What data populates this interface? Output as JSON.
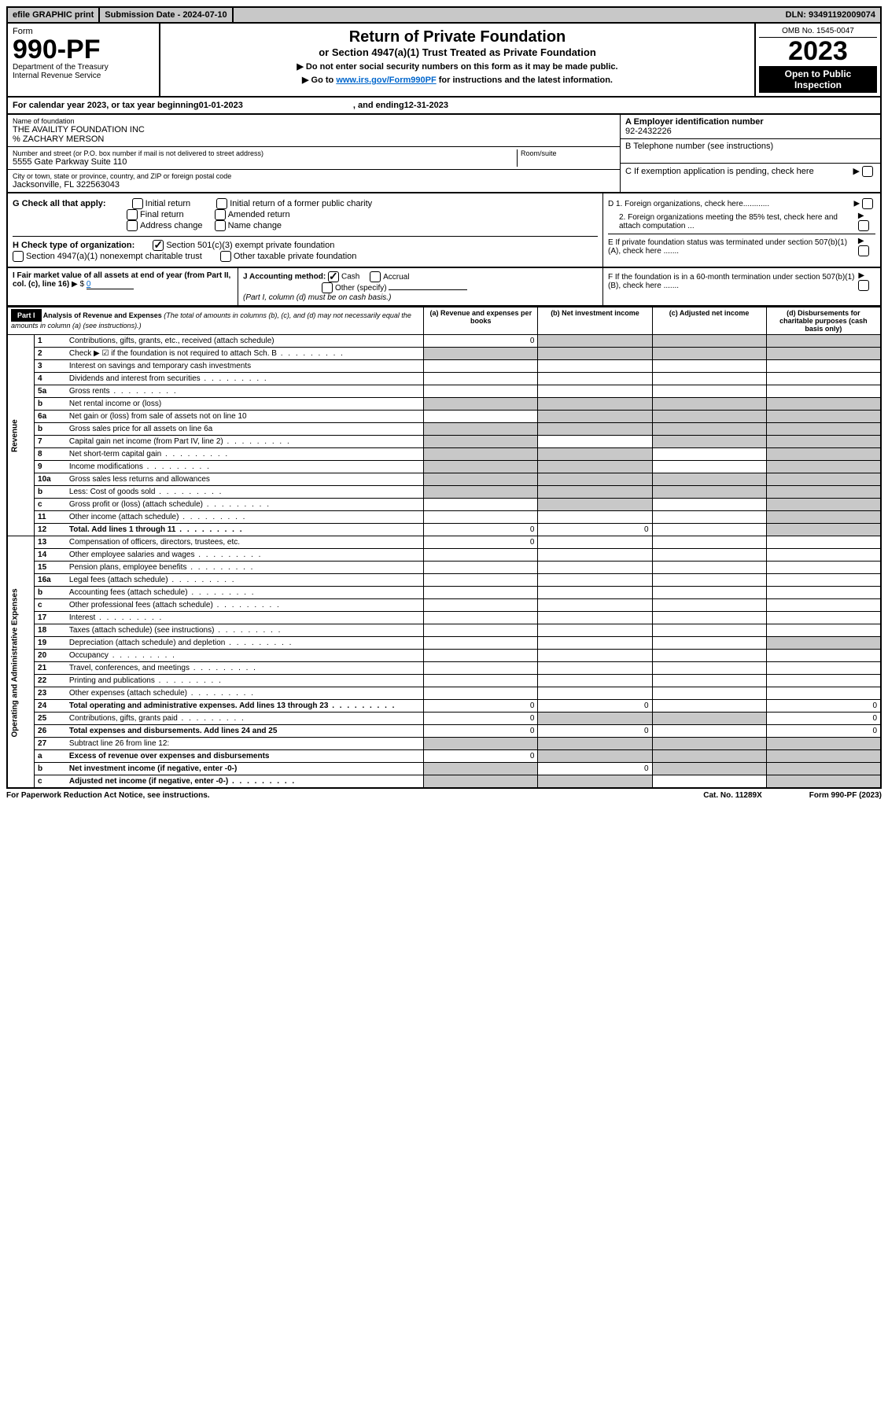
{
  "topBar": {
    "efile": "efile GRAPHIC print",
    "subDateLabel": "Submission Date - 2024-07-10",
    "dln": "DLN: 93491192009074"
  },
  "header": {
    "formLabel": "Form",
    "formNumber": "990-PF",
    "dept": "Department of the Treasury",
    "irs": "Internal Revenue Service",
    "title": "Return of Private Foundation",
    "subtitle": "or Section 4947(a)(1) Trust Treated as Private Foundation",
    "note1": "▶ Do not enter social security numbers on this form as it may be made public.",
    "note2Pre": "▶ Go to ",
    "note2Link": "www.irs.gov/Form990PF",
    "note2Post": " for instructions and the latest information.",
    "omb": "OMB No. 1545-0047",
    "year": "2023",
    "openBadge": "Open to Public Inspection"
  },
  "calYear": {
    "prefix": "For calendar year 2023, or tax year beginning ",
    "begin": "01-01-2023",
    "mid": ", and ending ",
    "end": "12-31-2023"
  },
  "entity": {
    "nameLabel": "Name of foundation",
    "name": "THE AVAILITY FOUNDATION INC",
    "careOf": "% ZACHARY MERSON",
    "addrLabel": "Number and street (or P.O. box number if mail is not delivered to street address)",
    "addr": "5555 Gate Parkway Suite 110",
    "roomLabel": "Room/suite",
    "cityLabel": "City or town, state or province, country, and ZIP or foreign postal code",
    "city": "Jacksonville, FL  322563043",
    "einLabel": "A Employer identification number",
    "ein": "92-2432226",
    "phoneLabel": "B Telephone number (see instructions)",
    "cLabel": "C If exemption application is pending, check here"
  },
  "checkG": {
    "label": "G Check all that apply:",
    "opts": [
      "Initial return",
      "Final return",
      "Address change",
      "Initial return of a former public charity",
      "Amended return",
      "Name change"
    ]
  },
  "checkH": {
    "label": "H Check type of organization:",
    "opt1": "Section 501(c)(3) exempt private foundation",
    "opt2": "Section 4947(a)(1) nonexempt charitable trust",
    "opt3": "Other taxable private foundation"
  },
  "rightD": {
    "d1": "D 1. Foreign organizations, check here............",
    "d2": "2. Foreign organizations meeting the 85% test, check here and attach computation ...",
    "e": "E  If private foundation status was terminated under section 507(b)(1)(A), check here .......",
    "f": "F  If the foundation is in a 60-month termination under section 507(b)(1)(B), check here ......."
  },
  "fmv": {
    "iLabel": "I Fair market value of all assets at end of year (from Part II, col. (c), line 16)",
    "iVal": "0",
    "jLabel": "J Accounting method:",
    "jCash": "Cash",
    "jAccrual": "Accrual",
    "jOther": "Other (specify)",
    "jNote": "(Part I, column (d) must be on cash basis.)"
  },
  "part1": {
    "label": "Part I",
    "title": "Analysis of Revenue and Expenses",
    "titleNote": "(The total of amounts in columns (b), (c), and (d) may not necessarily equal the amounts in column (a) (see instructions).)",
    "colA": "(a)   Revenue and expenses per books",
    "colB": "(b)   Net investment income",
    "colC": "(c)   Adjusted net income",
    "colD": "(d)   Disbursements for charitable purposes (cash basis only)"
  },
  "sideRevenue": "Revenue",
  "sideExpenses": "Operating and Administrative Expenses",
  "rows": [
    {
      "n": "1",
      "desc": "Contributions, gifts, grants, etc., received (attach schedule)",
      "a": "0",
      "shadeB": true,
      "shadeC": true,
      "shadeD": true
    },
    {
      "n": "2",
      "desc": "Check ▶ ☑ if the foundation is not required to attach Sch. B",
      "shadeA": true,
      "shadeB": true,
      "shadeC": true,
      "shadeD": true,
      "bold": false,
      "dots": true
    },
    {
      "n": "3",
      "desc": "Interest on savings and temporary cash investments"
    },
    {
      "n": "4",
      "desc": "Dividends and interest from securities",
      "dots": true
    },
    {
      "n": "5a",
      "desc": "Gross rents",
      "dots": true
    },
    {
      "n": "b",
      "desc": "Net rental income or (loss)",
      "shadeA": true,
      "shadeB": true,
      "shadeC": true,
      "shadeD": true,
      "inline": true
    },
    {
      "n": "6a",
      "desc": "Net gain or (loss) from sale of assets not on line 10",
      "shadeB": true,
      "shadeC": true,
      "shadeD": true
    },
    {
      "n": "b",
      "desc": "Gross sales price for all assets on line 6a",
      "shadeA": true,
      "shadeB": true,
      "shadeC": true,
      "shadeD": true,
      "inline": true
    },
    {
      "n": "7",
      "desc": "Capital gain net income (from Part IV, line 2)",
      "dots": true,
      "shadeA": true,
      "shadeC": true,
      "shadeD": true
    },
    {
      "n": "8",
      "desc": "Net short-term capital gain",
      "dots": true,
      "shadeA": true,
      "shadeB": true,
      "shadeD": true
    },
    {
      "n": "9",
      "desc": "Income modifications",
      "dots": true,
      "shadeA": true,
      "shadeB": true,
      "shadeD": true
    },
    {
      "n": "10a",
      "desc": "Gross sales less returns and allowances",
      "shadeA": true,
      "shadeB": true,
      "shadeC": true,
      "shadeD": true,
      "inline": true
    },
    {
      "n": "b",
      "desc": "Less: Cost of goods sold",
      "dots": true,
      "shadeA": true,
      "shadeB": true,
      "shadeC": true,
      "shadeD": true,
      "inline": true
    },
    {
      "n": "c",
      "desc": "Gross profit or (loss) (attach schedule)",
      "dots": true,
      "shadeB": true,
      "shadeD": true
    },
    {
      "n": "11",
      "desc": "Other income (attach schedule)",
      "dots": true,
      "shadeD": true
    },
    {
      "n": "12",
      "desc": "Total. Add lines 1 through 11",
      "dots": true,
      "bold": true,
      "a": "0",
      "b": "0",
      "shadeD": true
    },
    {
      "n": "13",
      "desc": "Compensation of officers, directors, trustees, etc.",
      "a": "0"
    },
    {
      "n": "14",
      "desc": "Other employee salaries and wages",
      "dots": true
    },
    {
      "n": "15",
      "desc": "Pension plans, employee benefits",
      "dots": true
    },
    {
      "n": "16a",
      "desc": "Legal fees (attach schedule)",
      "dots": true
    },
    {
      "n": "b",
      "desc": "Accounting fees (attach schedule)",
      "dots": true
    },
    {
      "n": "c",
      "desc": "Other professional fees (attach schedule)",
      "dots": true
    },
    {
      "n": "17",
      "desc": "Interest",
      "dots": true
    },
    {
      "n": "18",
      "desc": "Taxes (attach schedule) (see instructions)",
      "dots": true
    },
    {
      "n": "19",
      "desc": "Depreciation (attach schedule) and depletion",
      "dots": true,
      "shadeD": true
    },
    {
      "n": "20",
      "desc": "Occupancy",
      "dots": true
    },
    {
      "n": "21",
      "desc": "Travel, conferences, and meetings",
      "dots": true
    },
    {
      "n": "22",
      "desc": "Printing and publications",
      "dots": true
    },
    {
      "n": "23",
      "desc": "Other expenses (attach schedule)",
      "dots": true
    },
    {
      "n": "24",
      "desc": "Total operating and administrative expenses. Add lines 13 through 23",
      "dots": true,
      "bold": true,
      "a": "0",
      "b": "0",
      "d": "0"
    },
    {
      "n": "25",
      "desc": "Contributions, gifts, grants paid",
      "dots": true,
      "a": "0",
      "shadeB": true,
      "shadeC": true,
      "d": "0"
    },
    {
      "n": "26",
      "desc": "Total expenses and disbursements. Add lines 24 and 25",
      "bold": true,
      "a": "0",
      "b": "0",
      "d": "0"
    },
    {
      "n": "27",
      "desc": "Subtract line 26 from line 12:",
      "shadeA": true,
      "shadeB": true,
      "shadeC": true,
      "shadeD": true
    },
    {
      "n": "a",
      "desc": "Excess of revenue over expenses and disbursements",
      "bold": true,
      "a": "0",
      "shadeB": true,
      "shadeC": true,
      "shadeD": true
    },
    {
      "n": "b",
      "desc": "Net investment income (if negative, enter -0-)",
      "bold": true,
      "shadeA": true,
      "b": "0",
      "shadeC": true,
      "shadeD": true
    },
    {
      "n": "c",
      "desc": "Adjusted net income (if negative, enter -0-)",
      "bold": true,
      "dots": true,
      "shadeA": true,
      "shadeB": true,
      "shadeD": true
    }
  ],
  "footer": {
    "left": "For Paperwork Reduction Act Notice, see instructions.",
    "mid": "Cat. No. 11289X",
    "right": "Form 990-PF (2023)"
  }
}
